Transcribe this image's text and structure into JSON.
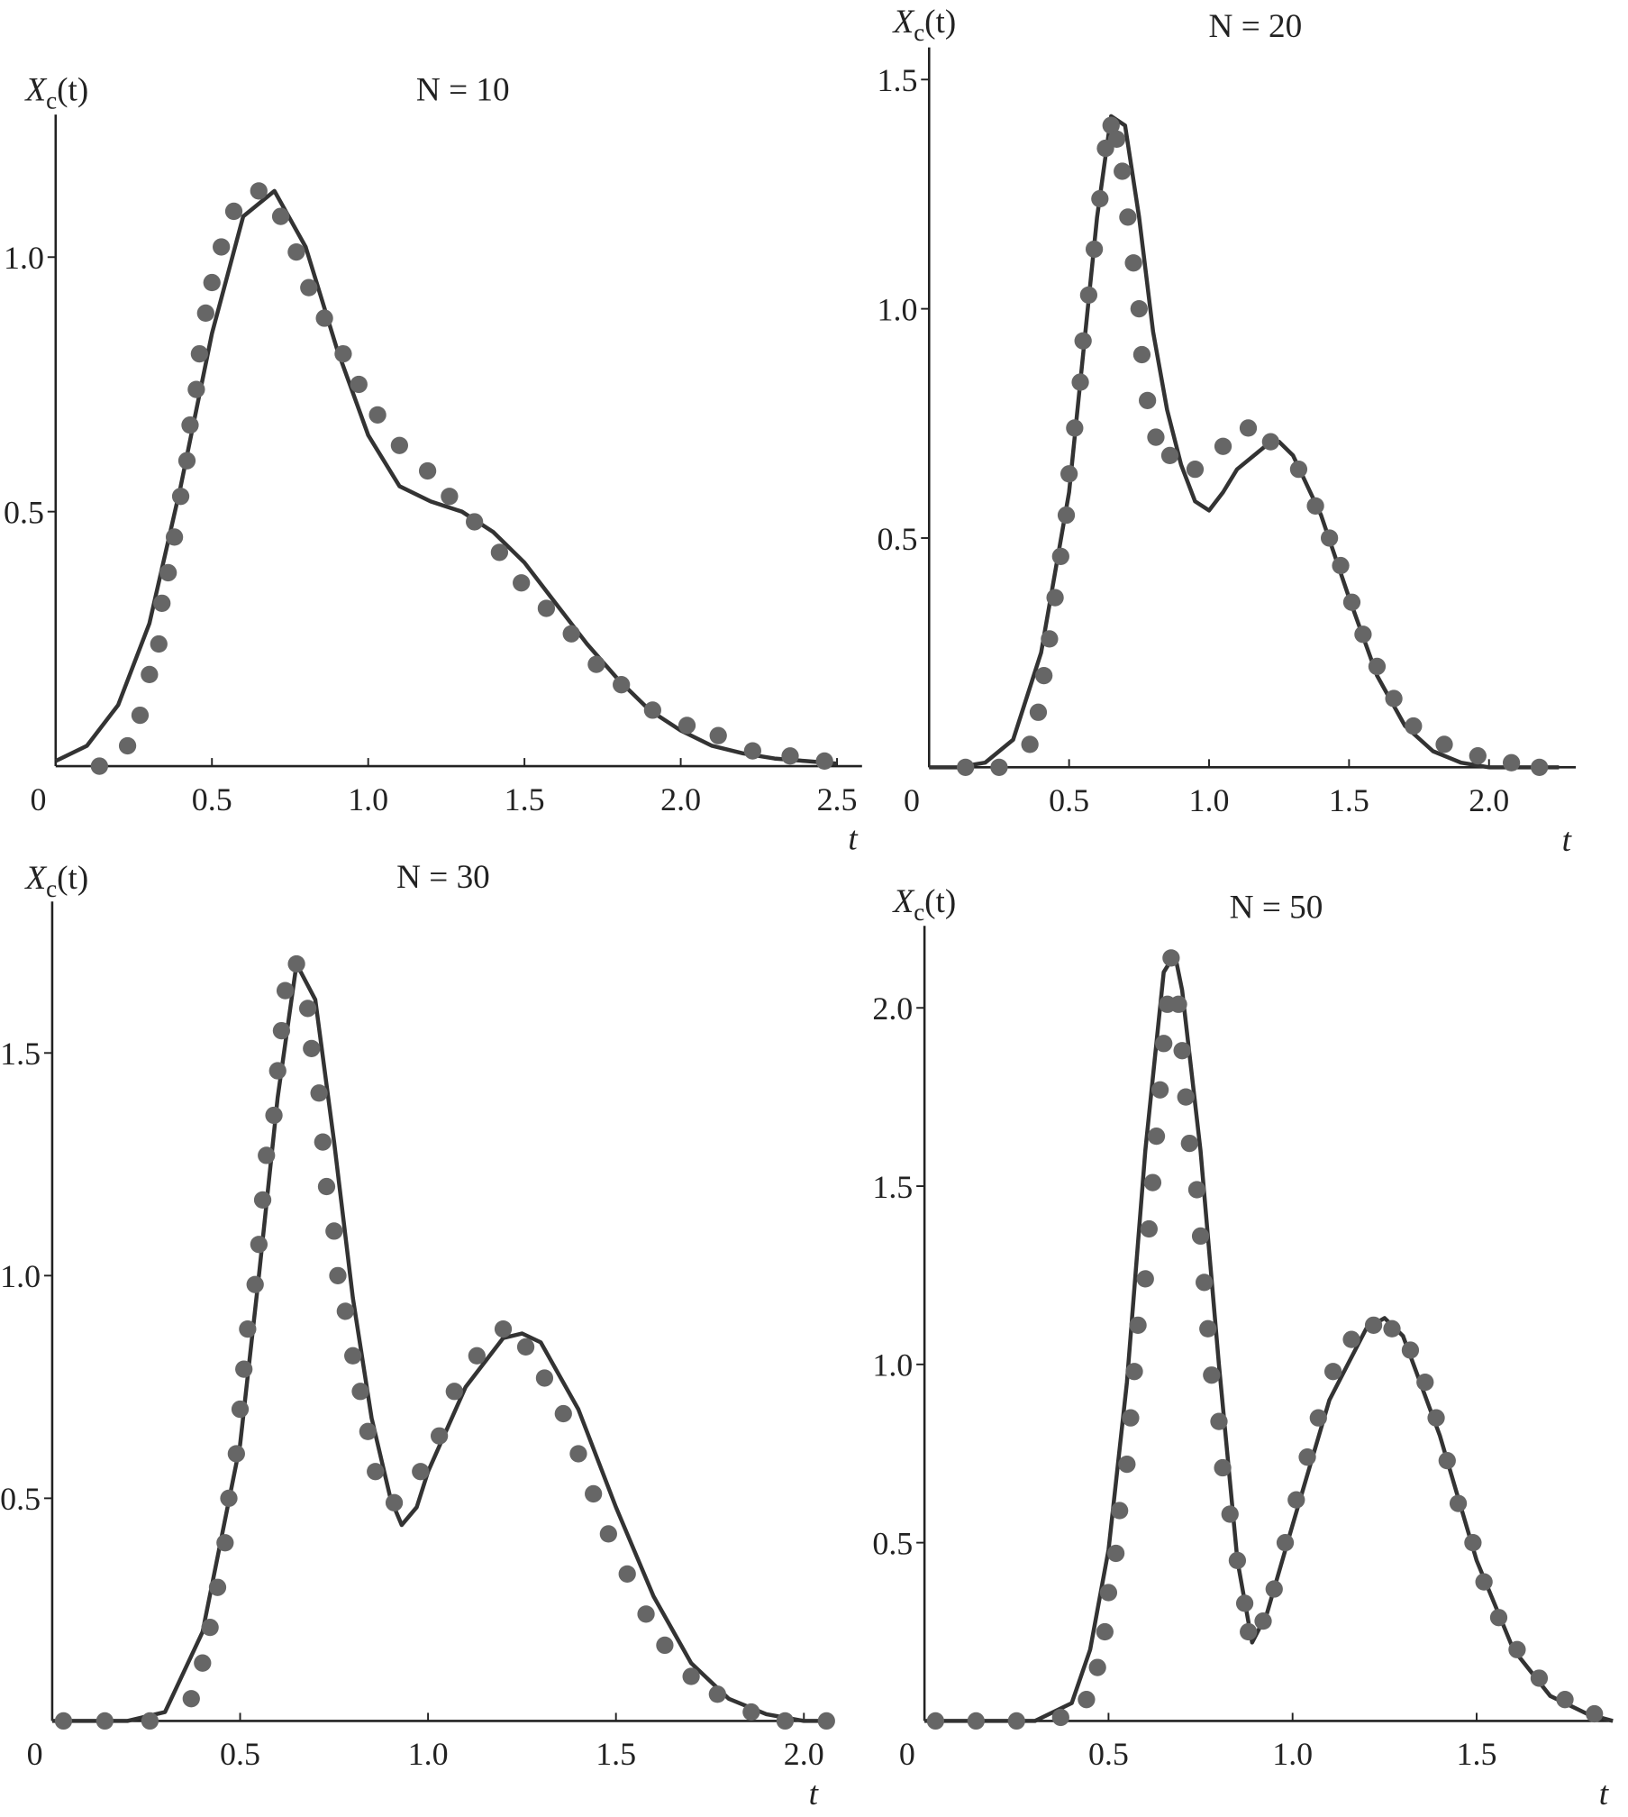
{
  "chart_data": [
    {
      "type": "line",
      "title": "N = 10",
      "ylabel": {
        "symbol": "X",
        "subscript": "c",
        "argument": "(t)"
      },
      "xlabel": "t",
      "origin_label": "0",
      "xlim": [
        0,
        2.58
      ],
      "ylim": [
        0,
        1.28
      ],
      "xticks": [
        0.5,
        {
          "value": 1,
          "label": "1.0"
        },
        1.5,
        {
          "value": 2,
          "label": "2.0"
        },
        2.5
      ],
      "yticks": [
        0.5,
        {
          "value": 1,
          "label": "1.0"
        }
      ],
      "series": [
        {
          "style": "line",
          "color": "#333333",
          "x": [
            0,
            0.1,
            0.2,
            0.3,
            0.4,
            0.5,
            0.6,
            0.7,
            0.8,
            0.9,
            1.0,
            1.1,
            1.2,
            1.3,
            1.4,
            1.5,
            1.6,
            1.7,
            1.8,
            1.9,
            2.0,
            2.1,
            2.2,
            2.3,
            2.4,
            2.5
          ],
          "values": [
            0.01,
            0.04,
            0.12,
            0.28,
            0.55,
            0.85,
            1.08,
            1.13,
            1.02,
            0.82,
            0.65,
            0.55,
            0.52,
            0.5,
            0.46,
            0.4,
            0.32,
            0.24,
            0.17,
            0.11,
            0.07,
            0.04,
            0.025,
            0.015,
            0.01,
            0.005
          ]
        },
        {
          "style": "markers",
          "color": "#666666",
          "x": [
            0.14,
            0.23,
            0.27,
            0.3,
            0.33,
            0.34,
            0.36,
            0.38,
            0.4,
            0.42,
            0.43,
            0.45,
            0.46,
            0.48,
            0.5,
            0.53,
            0.57,
            0.65,
            0.72,
            0.77,
            0.81,
            0.86,
            0.92,
            0.97,
            1.03,
            1.1,
            1.19,
            1.26,
            1.34,
            1.42,
            1.49,
            1.57,
            1.65,
            1.73,
            1.81,
            1.91,
            2.02,
            2.12,
            2.23,
            2.35,
            2.46
          ],
          "values": [
            0,
            0.04,
            0.1,
            0.18,
            0.24,
            0.32,
            0.38,
            0.45,
            0.53,
            0.6,
            0.67,
            0.74,
            0.81,
            0.89,
            0.95,
            1.02,
            1.09,
            1.13,
            1.08,
            1.01,
            0.94,
            0.88,
            0.81,
            0.75,
            0.69,
            0.63,
            0.58,
            0.53,
            0.48,
            0.42,
            0.36,
            0.31,
            0.26,
            0.2,
            0.16,
            0.11,
            0.08,
            0.06,
            0.03,
            0.02,
            0.01
          ]
        }
      ]
    },
    {
      "type": "line",
      "title": "N = 20",
      "ylabel": {
        "symbol": "X",
        "subscript": "c",
        "argument": "(t)"
      },
      "xlabel": "t",
      "origin_label": "0",
      "xlim": [
        0,
        2.31
      ],
      "ylim": [
        0,
        1.57
      ],
      "xticks": [
        0.5,
        {
          "value": 1,
          "label": "1.0"
        },
        1.5,
        {
          "value": 2,
          "label": "2.0"
        }
      ],
      "yticks": [
        0.5,
        {
          "value": 1,
          "label": "1.0"
        },
        1.5
      ],
      "series": [
        {
          "style": "line",
          "color": "#333333",
          "x": [
            0,
            0.1,
            0.2,
            0.3,
            0.4,
            0.5,
            0.55,
            0.6,
            0.65,
            0.7,
            0.75,
            0.8,
            0.85,
            0.9,
            0.95,
            1.0,
            1.05,
            1.1,
            1.2,
            1.25,
            1.3,
            1.4,
            1.5,
            1.6,
            1.7,
            1.8,
            1.9,
            2.0,
            2.1,
            2.25
          ],
          "values": [
            0,
            0,
            0.01,
            0.06,
            0.25,
            0.6,
            0.9,
            1.2,
            1.42,
            1.4,
            1.2,
            0.95,
            0.78,
            0.66,
            0.58,
            0.56,
            0.6,
            0.65,
            0.7,
            0.71,
            0.68,
            0.55,
            0.37,
            0.2,
            0.09,
            0.035,
            0.01,
            0,
            0,
            0
          ]
        },
        {
          "style": "markers",
          "color": "#666666",
          "x": [
            0.13,
            0.25,
            0.36,
            0.39,
            0.41,
            0.43,
            0.45,
            0.47,
            0.49,
            0.5,
            0.52,
            0.54,
            0.55,
            0.57,
            0.59,
            0.61,
            0.63,
            0.65,
            0.67,
            0.69,
            0.71,
            0.73,
            0.75,
            0.76,
            0.78,
            0.81,
            0.86,
            0.95,
            1.05,
            1.14,
            1.22,
            1.32,
            1.38,
            1.43,
            1.47,
            1.51,
            1.55,
            1.6,
            1.66,
            1.73,
            1.84,
            1.96,
            2.08,
            2.18
          ],
          "values": [
            0,
            0,
            0.05,
            0.12,
            0.2,
            0.28,
            0.37,
            0.46,
            0.55,
            0.64,
            0.74,
            0.84,
            0.93,
            1.03,
            1.13,
            1.24,
            1.35,
            1.4,
            1.37,
            1.3,
            1.2,
            1.1,
            1.0,
            0.9,
            0.8,
            0.72,
            0.68,
            0.65,
            0.7,
            0.74,
            0.71,
            0.65,
            0.57,
            0.5,
            0.44,
            0.36,
            0.29,
            0.22,
            0.15,
            0.09,
            0.05,
            0.025,
            0.01,
            0
          ]
        }
      ]
    },
    {
      "type": "line",
      "title": "N = 30",
      "ylabel": {
        "symbol": "X",
        "subscript": "c",
        "argument": "(t)"
      },
      "xlabel": "t",
      "origin_label": "0",
      "xlim": [
        0,
        2.05
      ],
      "ylim": [
        0,
        1.84
      ],
      "xticks": [
        0.5,
        {
          "value": 1,
          "label": "1.0"
        },
        1.5,
        {
          "value": 2,
          "label": "2.0"
        }
      ],
      "yticks": [
        0.5,
        {
          "value": 1,
          "label": "1.0"
        },
        1.5
      ],
      "series": [
        {
          "style": "line",
          "color": "#333333",
          "x": [
            0,
            0.2,
            0.3,
            0.4,
            0.5,
            0.55,
            0.6,
            0.65,
            0.7,
            0.75,
            0.8,
            0.85,
            0.9,
            0.93,
            0.97,
            1.0,
            1.1,
            1.2,
            1.25,
            1.3,
            1.4,
            1.5,
            1.6,
            1.7,
            1.8,
            1.9,
            2.0,
            2.05
          ],
          "values": [
            0,
            0,
            0.02,
            0.2,
            0.62,
            1.0,
            1.4,
            1.7,
            1.62,
            1.3,
            0.95,
            0.68,
            0.5,
            0.44,
            0.48,
            0.56,
            0.75,
            0.86,
            0.87,
            0.85,
            0.7,
            0.48,
            0.28,
            0.13,
            0.05,
            0.015,
            0,
            0
          ]
        },
        {
          "style": "markers",
          "color": "#666666",
          "x": [
            0.03,
            0.14,
            0.26,
            0.37,
            0.4,
            0.42,
            0.44,
            0.46,
            0.47,
            0.49,
            0.5,
            0.51,
            0.52,
            0.54,
            0.55,
            0.56,
            0.57,
            0.59,
            0.6,
            0.61,
            0.62,
            0.65,
            0.68,
            0.69,
            0.71,
            0.72,
            0.73,
            0.75,
            0.76,
            0.78,
            0.8,
            0.82,
            0.84,
            0.86,
            0.91,
            0.98,
            1.03,
            1.07,
            1.13,
            1.2,
            1.26,
            1.31,
            1.36,
            1.4,
            1.44,
            1.48,
            1.53,
            1.58,
            1.63,
            1.7,
            1.77,
            1.86,
            1.95,
            2.06
          ],
          "values": [
            0,
            0,
            0,
            0.05,
            0.13,
            0.21,
            0.3,
            0.4,
            0.5,
            0.6,
            0.7,
            0.79,
            0.88,
            0.98,
            1.07,
            1.17,
            1.27,
            1.36,
            1.46,
            1.55,
            1.64,
            1.7,
            1.6,
            1.51,
            1.41,
            1.3,
            1.2,
            1.1,
            1.0,
            0.92,
            0.82,
            0.74,
            0.65,
            0.56,
            0.49,
            0.56,
            0.64,
            0.74,
            0.82,
            0.88,
            0.84,
            0.77,
            0.69,
            0.6,
            0.51,
            0.42,
            0.33,
            0.24,
            0.17,
            0.1,
            0.06,
            0.02,
            0,
            0
          ]
        }
      ]
    },
    {
      "type": "line",
      "title": "N = 50",
      "ylabel": {
        "symbol": "X",
        "subscript": "c",
        "argument": "(t)"
      },
      "xlabel": "t",
      "origin_label": "0",
      "xlim": [
        0,
        1.87
      ],
      "ylim": [
        0,
        2.23
      ],
      "xticks": [
        0.5,
        {
          "value": 1,
          "label": "1.0"
        },
        1.5
      ],
      "yticks": [
        0.5,
        {
          "value": 1,
          "label": "1.0"
        },
        1.5,
        {
          "value": 2,
          "label": "2.0"
        }
      ],
      "series": [
        {
          "style": "line",
          "color": "#333333",
          "x": [
            0,
            0.3,
            0.4,
            0.45,
            0.5,
            0.55,
            0.6,
            0.65,
            0.68,
            0.7,
            0.75,
            0.8,
            0.85,
            0.89,
            0.93,
            1.0,
            1.1,
            1.2,
            1.25,
            1.3,
            1.4,
            1.5,
            1.6,
            1.7,
            1.8,
            1.87
          ],
          "values": [
            0,
            0,
            0.05,
            0.2,
            0.48,
            0.95,
            1.6,
            2.1,
            2.15,
            2.05,
            1.6,
            1.0,
            0.45,
            0.22,
            0.3,
            0.55,
            0.9,
            1.1,
            1.13,
            1.08,
            0.8,
            0.45,
            0.2,
            0.07,
            0.02,
            0
          ]
        },
        {
          "style": "markers",
          "color": "#666666",
          "x": [
            0.03,
            0.14,
            0.25,
            0.37,
            0.44,
            0.47,
            0.49,
            0.5,
            0.52,
            0.53,
            0.55,
            0.56,
            0.57,
            0.58,
            0.6,
            0.61,
            0.62,
            0.63,
            0.64,
            0.65,
            0.66,
            0.67,
            0.69,
            0.7,
            0.71,
            0.72,
            0.74,
            0.75,
            0.76,
            0.77,
            0.78,
            0.8,
            0.81,
            0.83,
            0.85,
            0.87,
            0.88,
            0.92,
            0.95,
            0.98,
            1.01,
            1.04,
            1.07,
            1.11,
            1.16,
            1.22,
            1.27,
            1.32,
            1.36,
            1.39,
            1.42,
            1.45,
            1.49,
            1.52,
            1.56,
            1.61,
            1.67,
            1.74,
            1.82
          ],
          "values": [
            0,
            0,
            0,
            0.01,
            0.06,
            0.15,
            0.25,
            0.36,
            0.47,
            0.59,
            0.72,
            0.85,
            0.98,
            1.11,
            1.24,
            1.38,
            1.51,
            1.64,
            1.77,
            1.9,
            2.01,
            2.14,
            2.01,
            1.88,
            1.75,
            1.62,
            1.49,
            1.36,
            1.23,
            1.1,
            0.97,
            0.84,
            0.71,
            0.58,
            0.45,
            0.33,
            0.25,
            0.28,
            0.37,
            0.5,
            0.62,
            0.74,
            0.85,
            0.98,
            1.07,
            1.11,
            1.1,
            1.04,
            0.95,
            0.85,
            0.73,
            0.61,
            0.5,
            0.39,
            0.29,
            0.2,
            0.12,
            0.06,
            0.02
          ]
        }
      ]
    }
  ]
}
